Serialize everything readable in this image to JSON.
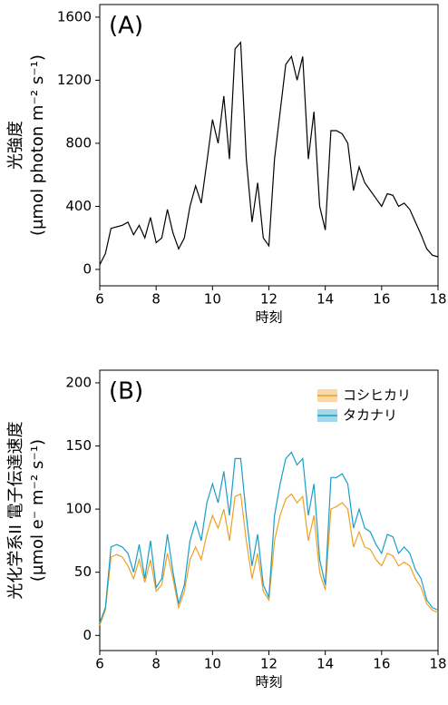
{
  "chart_data": [
    {
      "type": "line",
      "panel_label": "(A)",
      "xlabel": "時刻",
      "ylabel": [
        "光強度",
        "(μmol photon m⁻² s⁻¹)"
      ],
      "xlim": [
        6,
        18
      ],
      "xticks": [
        6,
        8,
        10,
        12,
        14,
        16,
        18
      ],
      "ylim": [
        -104,
        1680
      ],
      "yticks": [
        0,
        400,
        800,
        1200,
        1600
      ],
      "x": [
        6.0,
        6.2,
        6.4,
        6.6,
        6.8,
        7.0,
        7.2,
        7.4,
        7.6,
        7.8,
        8.0,
        8.2,
        8.4,
        8.6,
        8.8,
        9.0,
        9.2,
        9.4,
        9.6,
        9.8,
        10.0,
        10.2,
        10.4,
        10.6,
        10.8,
        11.0,
        11.2,
        11.4,
        11.6,
        11.8,
        12.0,
        12.2,
        12.4,
        12.6,
        12.8,
        13.0,
        13.2,
        13.4,
        13.6,
        13.8,
        14.0,
        14.2,
        14.4,
        14.6,
        14.8,
        15.0,
        15.2,
        15.4,
        15.6,
        15.8,
        16.0,
        16.2,
        16.4,
        16.6,
        16.8,
        17.0,
        17.2,
        17.4,
        17.6,
        17.8,
        18.0
      ],
      "series": [
        {
          "color": "#000000",
          "values": [
            30,
            100,
            260,
            270,
            280,
            300,
            220,
            280,
            200,
            330,
            170,
            200,
            380,
            230,
            130,
            200,
            400,
            530,
            420,
            680,
            950,
            800,
            1100,
            700,
            1400,
            1440,
            700,
            300,
            550,
            200,
            150,
            700,
            1000,
            1300,
            1350,
            1200,
            1350,
            700,
            1000,
            400,
            250,
            880,
            880,
            860,
            800,
            500,
            650,
            550,
            500,
            450,
            400,
            480,
            470,
            400,
            420,
            380,
            300,
            220,
            130,
            90,
            80
          ]
        }
      ]
    },
    {
      "type": "line",
      "panel_label": "(B)",
      "xlabel": "時刻",
      "ylabel": [
        "光化学系II 電子伝達速度",
        "(μmol e⁻ m⁻² s⁻¹)"
      ],
      "xlim": [
        6,
        18
      ],
      "xticks": [
        6,
        8,
        10,
        12,
        14,
        16,
        18
      ],
      "ylim": [
        -12,
        210
      ],
      "yticks": [
        0,
        50,
        100,
        150,
        200
      ],
      "x": [
        6.0,
        6.2,
        6.4,
        6.6,
        6.8,
        7.0,
        7.2,
        7.4,
        7.6,
        7.8,
        8.0,
        8.2,
        8.4,
        8.6,
        8.8,
        9.0,
        9.2,
        9.4,
        9.6,
        9.8,
        10.0,
        10.2,
        10.4,
        10.6,
        10.8,
        11.0,
        11.2,
        11.4,
        11.6,
        11.8,
        12.0,
        12.2,
        12.4,
        12.6,
        12.8,
        13.0,
        13.2,
        13.4,
        13.6,
        13.8,
        14.0,
        14.2,
        14.4,
        14.6,
        14.8,
        15.0,
        15.2,
        15.4,
        15.6,
        15.8,
        16.0,
        16.2,
        16.4,
        16.6,
        16.8,
        17.0,
        17.2,
        17.4,
        17.6,
        17.8,
        18.0
      ],
      "series": [
        {
          "name": "コシヒカリ",
          "color": "#f0a020",
          "values": [
            8,
            20,
            62,
            64,
            62,
            55,
            45,
            60,
            42,
            60,
            35,
            40,
            65,
            45,
            22,
            35,
            60,
            70,
            60,
            80,
            95,
            85,
            100,
            75,
            110,
            112,
            75,
            45,
            65,
            35,
            28,
            75,
            95,
            108,
            112,
            105,
            110,
            75,
            95,
            50,
            36,
            100,
            102,
            105,
            100,
            70,
            82,
            70,
            68,
            60,
            55,
            65,
            63,
            55,
            58,
            55,
            45,
            38,
            25,
            20,
            18
          ]
        },
        {
          "name": "タカナリ",
          "color": "#1a9ec8",
          "values": [
            10,
            22,
            70,
            72,
            70,
            65,
            50,
            72,
            45,
            75,
            38,
            45,
            80,
            50,
            25,
            40,
            75,
            90,
            75,
            105,
            120,
            105,
            130,
            95,
            140,
            140,
            95,
            55,
            80,
            40,
            30,
            95,
            120,
            140,
            145,
            135,
            140,
            95,
            120,
            60,
            40,
            125,
            125,
            128,
            120,
            85,
            100,
            85,
            82,
            72,
            65,
            80,
            78,
            65,
            70,
            65,
            52,
            45,
            28,
            22,
            20
          ]
        }
      ]
    }
  ]
}
